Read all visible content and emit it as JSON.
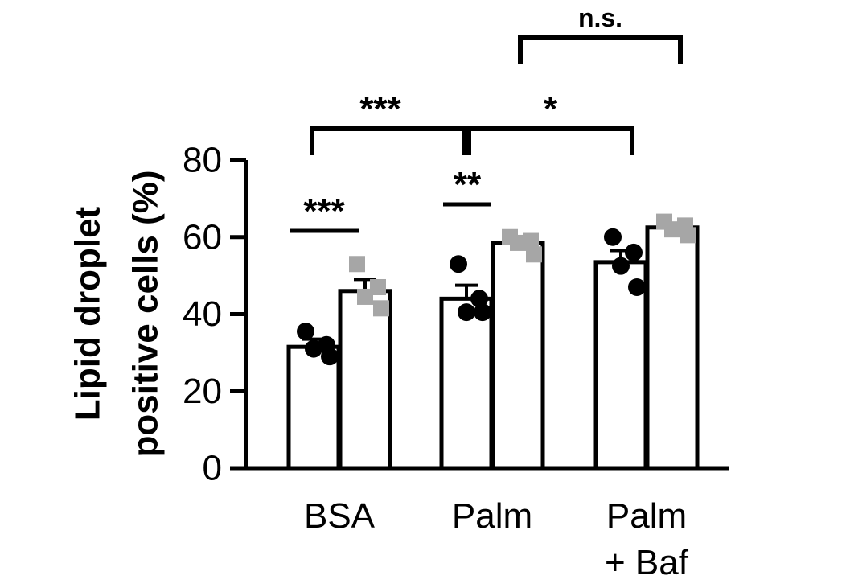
{
  "chart_data": {
    "type": "bar",
    "ylabel_lines": [
      "Lipid droplet",
      "positive cells (%)"
    ],
    "categories": [
      {
        "lines": [
          "BSA"
        ]
      },
      {
        "lines": [
          "Palm"
        ]
      },
      {
        "lines": [
          "Palm",
          "+ Baf"
        ]
      }
    ],
    "ylim": [
      0,
      80
    ],
    "yticks": [
      "0",
      "20",
      "40",
      "60",
      "80"
    ],
    "legend": "none",
    "grid": false,
    "series": [
      {
        "marker": "circle",
        "point_color": "#000000",
        "values": [
          31.5,
          44,
          53.5
        ],
        "sem": [
          2,
          3.5,
          3
        ],
        "points": [
          [
            35.5,
            32,
            31,
            29
          ],
          [
            53,
            44,
            40.5,
            40.5
          ],
          [
            60,
            56,
            52.5,
            47
          ]
        ]
      },
      {
        "marker": "square",
        "point_color": "#a6a6a6",
        "values": [
          46,
          58.5,
          62.5
        ],
        "sem": [
          3,
          0.7,
          0.5
        ],
        "points": [
          [
            53,
            47,
            44.5,
            41.5
          ],
          [
            60,
            59,
            58.5,
            55.5
          ],
          [
            64,
            63,
            62,
            60.5
          ]
        ]
      }
    ],
    "significance": [
      {
        "label": "***",
        "type": "line",
        "from": [
          0,
          0
        ],
        "to": [
          0,
          1
        ]
      },
      {
        "label": "**",
        "type": "line",
        "from": [
          1,
          0
        ],
        "to": [
          1,
          1
        ]
      },
      {
        "label": "***",
        "type": "bracket",
        "from": [
          0,
          0.5
        ],
        "to": [
          1,
          0.5
        ],
        "level": 0
      },
      {
        "label": "*",
        "type": "bracket",
        "from": [
          1,
          0.5
        ],
        "to": [
          2,
          0
        ],
        "level": 0
      },
      {
        "label": "n.s.",
        "type": "bracket",
        "from": [
          1,
          1
        ],
        "to": [
          2,
          1
        ],
        "level": 1
      }
    ]
  }
}
